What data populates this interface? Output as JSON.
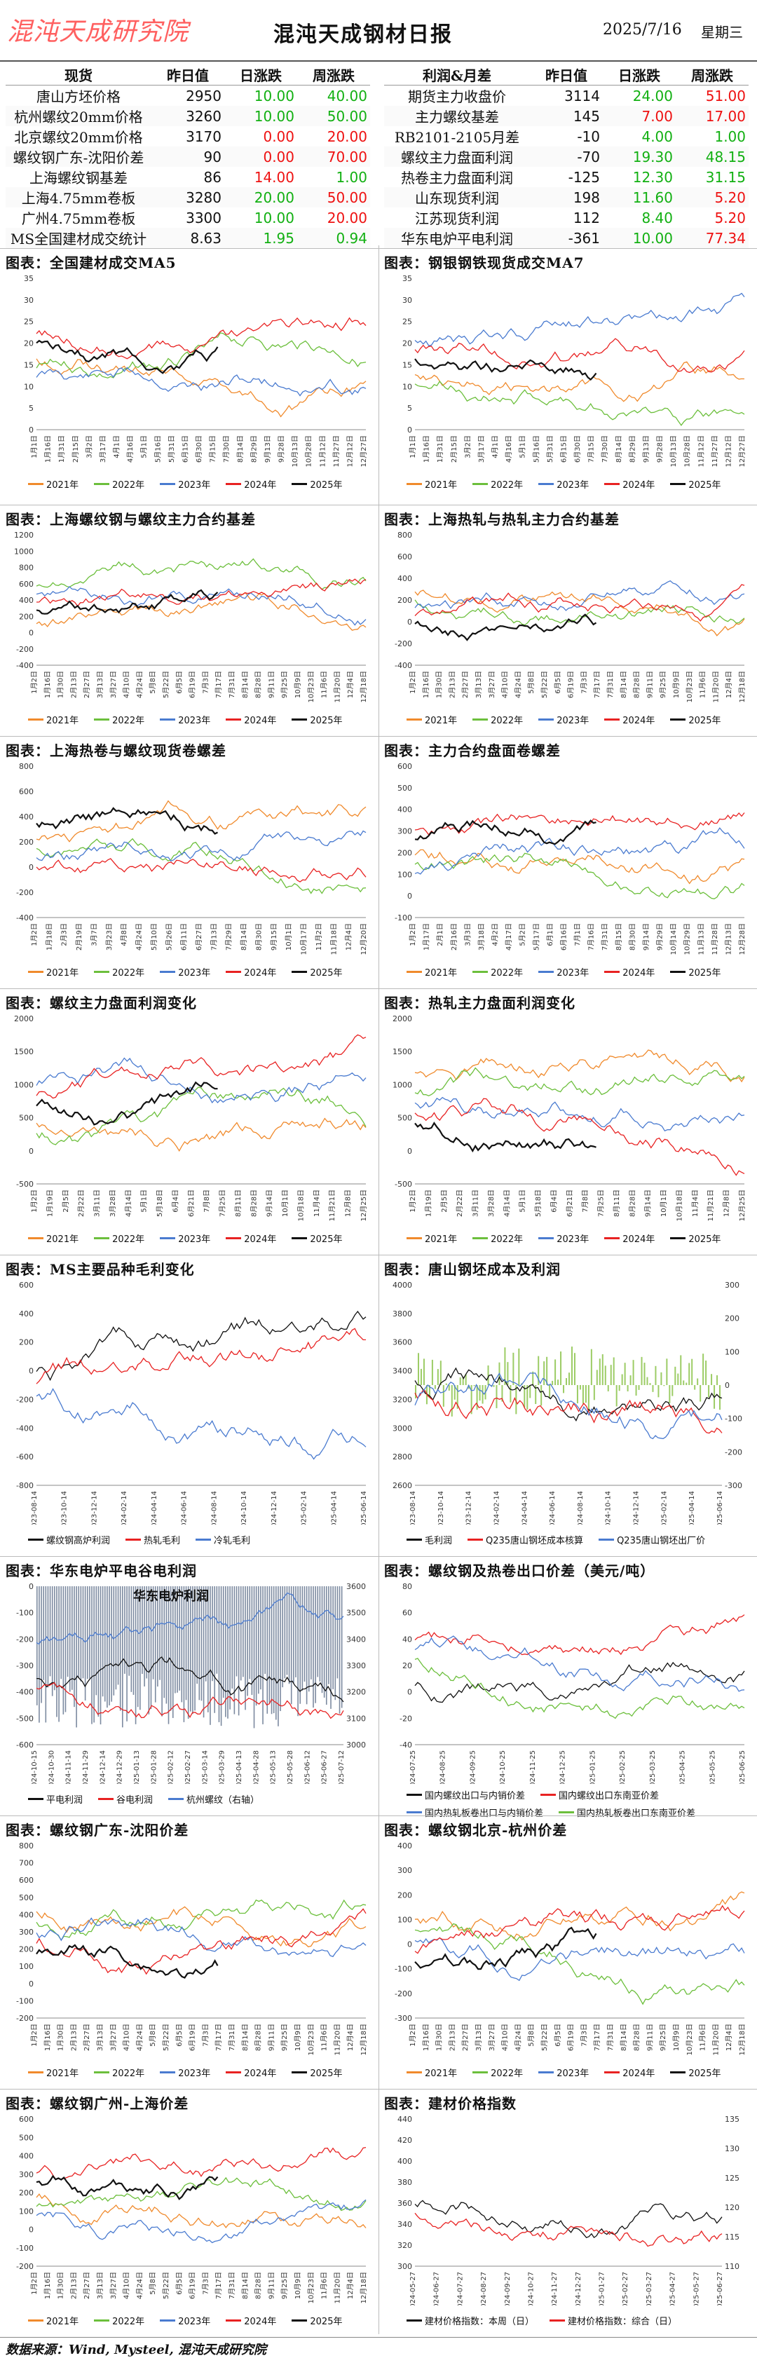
{
  "header": {
    "logo": "混沌天成研究院",
    "title": "混沌天成钢材日报",
    "date": "2025/7/16",
    "weekday": "星期三"
  },
  "left_table": {
    "headers": [
      "现货",
      "昨日值",
      "日涨跌",
      "周涨跌"
    ],
    "rows": [
      {
        "name": "唐山方坯价格",
        "v": "2950",
        "d": "10.00",
        "w": "40.00",
        "ds": "pos",
        "ws": "pos"
      },
      {
        "name": "杭州螺纹20mm价格",
        "v": "3260",
        "d": "10.00",
        "w": "50.00",
        "ds": "pos",
        "ws": "pos"
      },
      {
        "name": "北京螺纹20mm价格",
        "v": "3170",
        "d": "0.00",
        "w": "20.00",
        "ds": "neg",
        "ws": "neg"
      },
      {
        "name": "螺纹钢广东-沈阳价差",
        "v": "90",
        "d": "0.00",
        "w": "70.00",
        "ds": "neg",
        "ws": "neg"
      },
      {
        "name": "上海螺纹钢基差",
        "v": "86",
        "d": "14.00",
        "w": "1.00",
        "ds": "neg",
        "ws": "pos"
      },
      {
        "name": "上海4.75mm卷板",
        "v": "3280",
        "d": "20.00",
        "w": "50.00",
        "ds": "pos",
        "ws": "neg"
      },
      {
        "name": "广州4.75mm卷板",
        "v": "3300",
        "d": "10.00",
        "w": "20.00",
        "ds": "pos",
        "ws": "neg"
      },
      {
        "name": "MS全国建材成交统计",
        "v": "8.63",
        "d": "1.95",
        "w": "0.94",
        "ds": "pos",
        "ws": "pos"
      }
    ]
  },
  "right_table": {
    "headers": [
      "利润&月差",
      "昨日值",
      "日涨跌",
      "周涨跌"
    ],
    "rows": [
      {
        "name": "期货主力收盘价",
        "v": "3114",
        "d": "24.00",
        "w": "51.00",
        "ds": "pos",
        "ws": "neg"
      },
      {
        "name": "主力螺纹基差",
        "v": "145",
        "d": "7.00",
        "w": "17.00",
        "ds": "neg",
        "ws": "neg"
      },
      {
        "name": "RB2101-2105月差",
        "v": "-10",
        "d": "4.00",
        "w": "1.00",
        "ds": "pos",
        "ws": "pos"
      },
      {
        "name": "螺纹主力盘面利润",
        "v": "-70",
        "d": "19.30",
        "w": "48.15",
        "ds": "pos",
        "ws": "pos"
      },
      {
        "name": "热卷主力盘面利润",
        "v": "-125",
        "d": "12.30",
        "w": "31.15",
        "ds": "pos",
        "ws": "pos"
      },
      {
        "name": "山东现货利润",
        "v": "198",
        "d": "11.60",
        "w": "5.20",
        "ds": "pos",
        "ws": "neg"
      },
      {
        "name": "江苏现货利润",
        "v": "112",
        "d": "8.40",
        "w": "5.20",
        "ds": "pos",
        "ws": "neg"
      },
      {
        "name": "华东电炉平电利润",
        "v": "-361",
        "d": "10.00",
        "w": "77.34",
        "ds": "pos",
        "ws": "neg"
      }
    ]
  },
  "colors": {
    "y2021": "#f08a2c",
    "y2022": "#6cbf3c",
    "y2023": "#4a7bd0",
    "y2024": "#e82222",
    "y2025": "#111111",
    "pos": "#12b012",
    "neg": "#ee1111"
  },
  "season_legend": [
    "2021年",
    "2022年",
    "2023年",
    "2024年",
    "2025年"
  ],
  "sections": [
    {
      "id": "c1",
      "title": "图表：全国建材成交MA5",
      "yticks": [
        "35",
        "30",
        "25",
        "20",
        "15",
        "10",
        "5",
        "0"
      ],
      "xticks": [
        "1月1日",
        "1月16日",
        "1月31日",
        "2月15日",
        "3月2日",
        "3月17日",
        "4月1日",
        "4月16日",
        "5月1日",
        "5月16日",
        "5月31日",
        "6月15日",
        "6月30日",
        "7月15日",
        "7月30日",
        "8月14日",
        "8月29日",
        "9月13日",
        "9月28日",
        "10月13日",
        "10月28日",
        "11月12日",
        "11月27日",
        "12月12日",
        "12月27日"
      ]
    },
    {
      "id": "c2",
      "title": "图表：钢银钢铁现货成交MA7",
      "yticks": [
        "35",
        "30",
        "25",
        "20",
        "15",
        "10",
        "5",
        "0"
      ],
      "xticks": [
        "1月1日",
        "1月16日",
        "1月31日",
        "2月15日",
        "3月2日",
        "3月17日",
        "4月1日",
        "4月16日",
        "5月1日",
        "5月16日",
        "5月31日",
        "6月15日",
        "6月30日",
        "7月15日",
        "7月30日",
        "8月14日",
        "8月29日",
        "9月13日",
        "9月28日",
        "10月13日",
        "10月28日",
        "11月12日",
        "11月27日",
        "12月12日",
        "12月27日"
      ]
    },
    {
      "id": "c3",
      "title": "图表：上海螺纹钢与螺纹主力合约基差",
      "yticks": [
        "1200",
        "1000",
        "800",
        "600",
        "400",
        "200",
        "0",
        "-200",
        "-400"
      ],
      "xticks": [
        "1月2日",
        "1月16日",
        "1月30日",
        "2月13日",
        "2月27日",
        "3月13日",
        "3月27日",
        "4月10日",
        "4月24日",
        "5月8日",
        "5月22日",
        "6月5日",
        "6月19日",
        "7月3日",
        "7月17日",
        "7月31日",
        "8月14日",
        "8月28日",
        "9月11日",
        "9月25日",
        "10月9日",
        "10月23日",
        "11月6日",
        "11月20日",
        "12月4日",
        "12月18日"
      ]
    },
    {
      "id": "c4",
      "title": "图表：上海热轧与热轧主力合约基差",
      "yticks": [
        "800",
        "600",
        "400",
        "200",
        "0",
        "-200",
        "-400"
      ],
      "xticks": [
        "1月2日",
        "1月16日",
        "1月30日",
        "2月13日",
        "2月27日",
        "3月13日",
        "3月27日",
        "4月10日",
        "4月24日",
        "5月8日",
        "5月22日",
        "6月5日",
        "6月19日",
        "7月3日",
        "7月17日",
        "7月31日",
        "8月14日",
        "8月28日",
        "9月11日",
        "9月25日",
        "10月9日",
        "10月23日",
        "11月6日",
        "11月20日",
        "12月4日",
        "12月18日"
      ]
    },
    {
      "id": "c5",
      "title": "图表：上海热卷与螺纹现货卷螺差",
      "yticks": [
        "800",
        "600",
        "400",
        "200",
        "0",
        "-200",
        "-400"
      ],
      "xticks": [
        "1月2日",
        "1月18日",
        "2月3日",
        "2月19日",
        "3月7日",
        "3月23日",
        "4月8日",
        "4月24日",
        "5月10日",
        "5月26日",
        "6月11日",
        "6月27日",
        "7月13日",
        "7月29日",
        "8月14日",
        "8月30日",
        "9月15日",
        "10月1日",
        "10月17日",
        "11月2日",
        "11月18日",
        "12月4日",
        "12月20日"
      ]
    },
    {
      "id": "c6",
      "title": "图表：主力合约盘面卷螺差",
      "yticks": [
        "600",
        "500",
        "400",
        "300",
        "200",
        "100",
        "0",
        "-100"
      ],
      "xticks": [
        "1月2日",
        "1月17日",
        "2月1日",
        "2月16日",
        "3月3日",
        "3月18日",
        "4月2日",
        "4月17日",
        "5月2日",
        "5月17日",
        "6月1日",
        "6月16日",
        "7月1日",
        "7月16日",
        "7月31日",
        "8月15日",
        "8月30日",
        "9月14日",
        "9月29日",
        "10月14日",
        "10月29日",
        "11月13日",
        "11月28日",
        "12月13日",
        "12月28日"
      ]
    },
    {
      "id": "c7",
      "title": "图表：螺纹主力盘面利润变化",
      "yticks": [
        "2000",
        "1500",
        "1000",
        "500",
        "0",
        "-500"
      ],
      "xticks": [
        "1月2日",
        "1月19日",
        "2月5日",
        "2月22日",
        "3月11日",
        "3月28日",
        "4月14日",
        "5月1日",
        "5月18日",
        "6月4日",
        "6月21日",
        "7月8日",
        "7月25日",
        "8月11日",
        "8月28日",
        "9月14日",
        "10月1日",
        "10月18日",
        "11月4日",
        "11月21日",
        "12月8日",
        "12月25日"
      ]
    },
    {
      "id": "c8",
      "title": "图表：热轧主力盘面利润变化",
      "yticks": [
        "2000",
        "1500",
        "1000",
        "500",
        "0",
        "-500"
      ],
      "xticks": [
        "1月2日",
        "1月19日",
        "2月5日",
        "2月22日",
        "3月11日",
        "3月28日",
        "4月14日",
        "5月1日",
        "5月18日",
        "6月4日",
        "6月21日",
        "7月8日",
        "7月25日",
        "8月11日",
        "8月28日",
        "9月14日",
        "10月1日",
        "10月18日",
        "11月4日",
        "11月21日",
        "12月8日",
        "12月25日"
      ]
    },
    {
      "id": "c9",
      "title": "图表：MS主要品种毛利变化",
      "yticks": [
        "600",
        "400",
        "200",
        "0",
        "-200",
        "-400",
        "-600",
        "-800"
      ],
      "xticks": [
        "2023-08-14",
        "2023-10-14",
        "2023-12-14",
        "2024-02-14",
        "2024-04-14",
        "2024-06-14",
        "2024-08-14",
        "2024-10-14",
        "2024-12-14",
        "2025-02-14",
        "2025-04-14",
        "2025-06-14"
      ],
      "legend": [
        "螺纹钢高炉利润",
        "热轧毛利",
        "冷轧毛利"
      ]
    },
    {
      "id": "c10",
      "title": "图表：唐山钢坯成本及利润",
      "yticks": [
        "4000",
        "3800",
        "3600",
        "3400",
        "3200",
        "3000",
        "2800",
        "2600"
      ],
      "y2ticks": [
        "300",
        "200",
        "100",
        "0",
        "-100",
        "-200",
        "-300"
      ],
      "xticks": [
        "2023-08-14",
        "2023-10-14",
        "2023-12-14",
        "2024-02-14",
        "2024-04-14",
        "2024-06-14",
        "2024-08-14",
        "2024-10-14",
        "2024-12-14",
        "2025-02-14",
        "2025-04-14",
        "2025-06-14"
      ],
      "legend": [
        "毛利润",
        "Q235唐山钢坯成本核算",
        "Q235唐山钢坯出厂价"
      ]
    },
    {
      "id": "c11",
      "title": "图表：华东电炉平电谷电利润",
      "inner_title": "华东电炉利润",
      "yticks": [
        "0",
        "-100",
        "-200",
        "-300",
        "-400",
        "-500",
        "-600"
      ],
      "y2ticks": [
        "3600",
        "3500",
        "3400",
        "3300",
        "3200",
        "3100",
        "3000"
      ],
      "xticks": [
        "2024-10-15",
        "2024-10-30",
        "2024-11-14",
        "2024-11-29",
        "2024-12-14",
        "2024-12-29",
        "2025-01-13",
        "2025-01-28",
        "2025-02-12",
        "2025-02-27",
        "2025-03-14",
        "2025-03-29",
        "2025-04-13",
        "2025-04-28",
        "2025-05-13",
        "2025-05-28",
        "2025-06-12",
        "2025-06-27",
        "2025-07-12"
      ],
      "legend": [
        "平电利润",
        "谷电利润",
        "杭州螺纹（右轴）"
      ]
    },
    {
      "id": "c12",
      "title": "图表：螺纹钢及热卷出口价差（美元/吨）",
      "yticks": [
        "80",
        "60",
        "40",
        "20",
        "0",
        "-20",
        "-40"
      ],
      "xticks": [
        "2024-07-25",
        "2024-08-25",
        "2024-09-25",
        "2024-10-25",
        "2024-11-25",
        "2024-12-25",
        "2025-01-25",
        "2025-02-25",
        "2025-03-25",
        "2025-04-25",
        "2025-05-25",
        "2025-06-25"
      ],
      "legend": [
        "国内螺纹出口与内销价差",
        "国内螺纹出口东南亚价差",
        "国内热轧板卷出口与内销价差",
        "国内热轧板卷出口东南亚价差"
      ]
    },
    {
      "id": "c13",
      "title": "图表：螺纹钢广东-沈阳价差",
      "yticks": [
        "800",
        "700",
        "600",
        "500",
        "400",
        "300",
        "200",
        "100",
        "0",
        "-100",
        "-200"
      ],
      "xticks": [
        "1月2日",
        "1月16日",
        "1月30日",
        "2月13日",
        "2月27日",
        "3月13日",
        "3月27日",
        "4月10日",
        "4月24日",
        "5月8日",
        "5月22日",
        "6月5日",
        "6月19日",
        "7月3日",
        "7月17日",
        "7月31日",
        "8月14日",
        "8月28日",
        "9月11日",
        "9月25日",
        "10月9日",
        "10月23日",
        "11月6日",
        "11月20日",
        "12月4日",
        "12月18日"
      ]
    },
    {
      "id": "c14",
      "title": "图表：螺纹钢北京-杭州价差",
      "yticks": [
        "400",
        "300",
        "200",
        "100",
        "0",
        "-100",
        "-200",
        "-300"
      ],
      "xticks": [
        "1月2日",
        "1月16日",
        "1月30日",
        "2月13日",
        "2月27日",
        "3月13日",
        "3月27日",
        "4月10日",
        "4月24日",
        "5月8日",
        "5月22日",
        "6月5日",
        "6月19日",
        "7月3日",
        "7月17日",
        "7月31日",
        "8月14日",
        "8月28日",
        "9月11日",
        "9月25日",
        "10月9日",
        "10月23日",
        "11月6日",
        "11月20日",
        "12月4日",
        "12月18日"
      ]
    },
    {
      "id": "c15",
      "title": "图表：螺纹钢广州-上海价差",
      "yticks": [
        "600",
        "500",
        "400",
        "300",
        "200",
        "100",
        "0",
        "-100",
        "-200"
      ],
      "xticks": [
        "1月2日",
        "1月16日",
        "1月30日",
        "2月13日",
        "2月27日",
        "3月13日",
        "3月27日",
        "4月10日",
        "4月24日",
        "5月8日",
        "5月22日",
        "6月5日",
        "6月19日",
        "7月3日",
        "7月17日",
        "7月31日",
        "8月14日",
        "8月28日",
        "9月11日",
        "9月25日",
        "10月9日",
        "10月23日",
        "11月6日",
        "11月20日",
        "12月4日",
        "12月18日"
      ]
    },
    {
      "id": "c16",
      "title": "图表：建材价格指数",
      "yticks": [
        "440",
        "420",
        "400",
        "380",
        "360",
        "340",
        "320",
        "300"
      ],
      "y2ticks": [
        "135",
        "130",
        "125",
        "120",
        "115",
        "110"
      ],
      "xticks": [
        "2024-05-27",
        "2024-06-27",
        "2024-07-27",
        "2024-08-27",
        "2024-09-27",
        "2024-10-27",
        "2024-11-27",
        "2024-12-27",
        "2025-01-27",
        "2025-02-27",
        "2025-03-27",
        "2025-04-27",
        "2025-05-27",
        "2025-06-27"
      ],
      "legend": [
        "建材价格指数：本周（日）",
        "建材价格指数：综合（日）"
      ]
    }
  ],
  "footer": "数据来源：Wind, Mysteel, 混沌天成研究院"
}
